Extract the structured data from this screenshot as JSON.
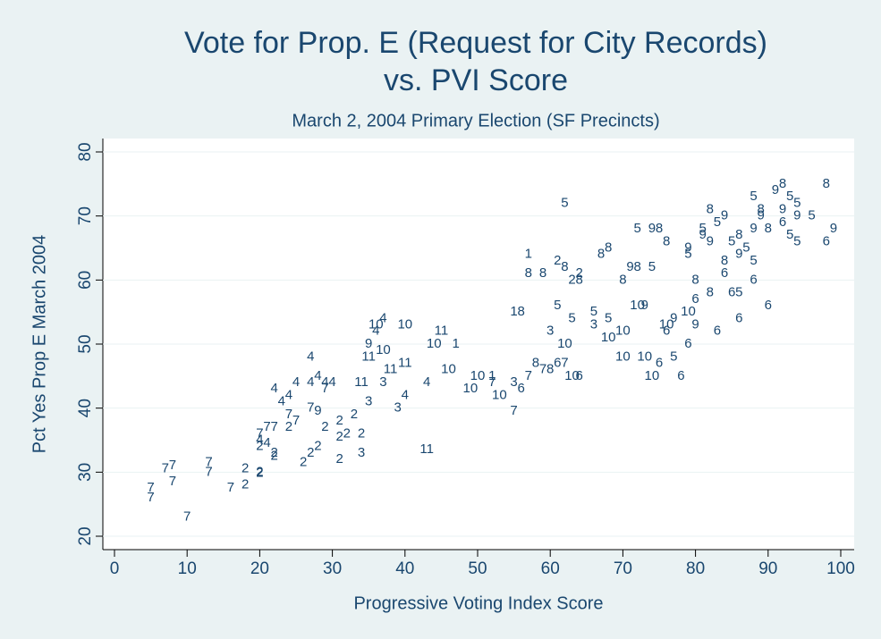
{
  "chart_data": {
    "type": "scatter",
    "title": [
      "Vote for Prop. E (Request for City Records)",
      "vs. PVI Score"
    ],
    "subtitle": "March 2, 2004 Primary Election (SF Precincts)",
    "x_label": "Progressive Voting Index Score",
    "y_label": "Pct Yes Prop E March 2004",
    "xlim": [
      0,
      100
    ],
    "xticks": [
      0,
      10,
      20,
      30,
      40,
      50,
      60,
      70,
      80,
      90,
      100
    ],
    "ylim": [
      20,
      80
    ],
    "yticks": [
      20,
      30,
      40,
      50,
      60,
      70,
      80
    ],
    "grid": true,
    "color": "#1a476f",
    "series": [
      {
        "x": [
          5,
          5,
          7,
          8,
          8,
          10,
          13,
          13,
          16,
          18,
          18,
          20,
          20,
          20,
          21,
          22,
          23,
          24,
          25,
          27,
          27,
          28,
          29,
          30,
          20,
          21,
          22,
          24,
          25,
          27,
          29,
          20,
          22,
          22,
          24,
          26,
          27,
          28,
          29,
          31,
          31,
          31,
          32,
          33,
          34,
          34,
          35,
          37,
          39,
          43,
          34,
          35,
          38,
          40,
          45,
          37,
          36,
          40,
          44,
          46,
          49,
          50,
          53,
          36,
          37,
          40,
          43,
          35,
          28,
          57,
          59,
          62,
          64,
          56,
          58,
          60,
          55,
          57,
          47,
          52,
          62,
          61,
          66,
          63,
          56,
          61,
          64,
          55,
          57,
          59,
          62,
          52,
          55,
          60,
          66,
          62,
          63,
          68,
          70,
          73,
          67,
          68,
          70,
          75,
          76,
          80,
          82,
          72,
          71,
          73,
          77,
          80,
          79,
          74,
          72,
          74,
          77,
          79,
          68,
          86,
          88,
          76,
          79,
          80,
          75,
          78,
          83,
          86,
          90,
          88,
          70,
          74,
          72,
          76,
          79,
          81,
          82,
          84,
          86,
          88,
          91,
          92,
          94,
          99,
          89,
          81,
          83,
          88,
          93,
          94,
          94,
          96,
          85,
          87,
          93,
          92,
          98,
          89,
          90,
          86,
          82,
          84,
          84,
          98,
          92,
          85,
          61,
          63,
          64
        ],
        "values": [
          26,
          27.5,
          30.5,
          28.5,
          31,
          23,
          31.5,
          30,
          27.5,
          28,
          30.5,
          30,
          29.8,
          35,
          34.5,
          43,
          41,
          42,
          44,
          44,
          48,
          45,
          44,
          44,
          36,
          37,
          37,
          39,
          38,
          40,
          43,
          34,
          32.5,
          33,
          37,
          31.5,
          33,
          34,
          37,
          35.5,
          32,
          38,
          36,
          39,
          36,
          33,
          41,
          44,
          40,
          33.5,
          44,
          48,
          46,
          47,
          52,
          49,
          53,
          53,
          50,
          46,
          43,
          45,
          42,
          52,
          54,
          42,
          44,
          50,
          39.5,
          61,
          61,
          62,
          60,
          55,
          47,
          46,
          55,
          64,
          50,
          45,
          72,
          56,
          55,
          54,
          43,
          47,
          45,
          39.5,
          45,
          46,
          47,
          44,
          44,
          52,
          53,
          50,
          45,
          51,
          48,
          48,
          64,
          65,
          60,
          68,
          66,
          60,
          58,
          62,
          62,
          56,
          54,
          53,
          65,
          68,
          68,
          62,
          48,
          64,
          54,
          58,
          63,
          52,
          50,
          57,
          47,
          45,
          52,
          54,
          56,
          60,
          52,
          45,
          56,
          53,
          55,
          67,
          66,
          70,
          64,
          68,
          74,
          71,
          70,
          68,
          70,
          68,
          69,
          73,
          73,
          72,
          66,
          70,
          66,
          65,
          67,
          75,
          75,
          71,
          68,
          67,
          71,
          63,
          61,
          66,
          69,
          58,
          63,
          60,
          61
        ],
        "labels": [
          "7",
          "7",
          "7",
          "7",
          "7",
          "7",
          "7",
          "7",
          "7",
          "2",
          "2",
          "2",
          "2",
          "4",
          "4",
          "4",
          "4",
          "4",
          "4",
          "4",
          "4",
          "4",
          "4",
          "4",
          "7",
          "7",
          "7",
          "7",
          "7",
          "7",
          "7",
          "2",
          "2",
          "2",
          "2",
          "2",
          "2",
          "2",
          "2",
          "2",
          "2",
          "2",
          "2",
          "2",
          "2",
          "3",
          "3",
          "3",
          "3",
          "11",
          "11",
          "11",
          "11",
          "11",
          "11",
          "10",
          "10",
          "10",
          "10",
          "10",
          "10",
          "10",
          "10",
          "4",
          "4",
          "4",
          "4",
          "9",
          "9",
          "8",
          "8",
          "8",
          "8",
          "8",
          "8",
          "8",
          "1",
          "1",
          "1",
          "1",
          "5",
          "5",
          "5",
          "5",
          "6",
          "6",
          "6",
          "7",
          "7",
          "7",
          "7",
          "7",
          "3",
          "3",
          "3",
          "10",
          "10",
          "10",
          "10",
          "10",
          "8",
          "8",
          "8",
          "8",
          "8",
          "8",
          "8",
          "8",
          "9",
          "9",
          "9",
          "9",
          "9",
          "9",
          "5",
          "5",
          "5",
          "5",
          "5",
          "5",
          "5",
          "6",
          "6",
          "6",
          "6",
          "6",
          "6",
          "6",
          "6",
          "6",
          "10",
          "10",
          "10",
          "10",
          "10",
          "9",
          "9",
          "9",
          "9",
          "9",
          "9",
          "9",
          "9",
          "9",
          "9",
          "5",
          "5",
          "5",
          "5",
          "5",
          "5",
          "5",
          "5",
          "5",
          "5",
          "8",
          "8",
          "8",
          "8",
          "8",
          "8",
          "8",
          "6",
          "6",
          "6",
          "6",
          "2",
          "2",
          "2"
        ]
      }
    ]
  }
}
